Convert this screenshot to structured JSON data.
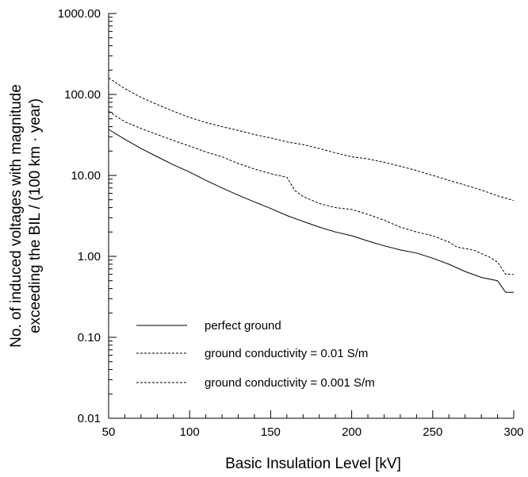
{
  "chart_data": {
    "type": "line",
    "title": "",
    "xlabel": "Basic Insulation Level [kV]",
    "ylabel_lines": [
      "No. of induced voltages with magnitude",
      "exceeding the BIL / (100 km · year)"
    ],
    "yscale": "log",
    "xlim": [
      50,
      300
    ],
    "ylim": [
      0.01,
      1000
    ],
    "x_ticks": [
      50,
      100,
      150,
      200,
      250,
      300
    ],
    "x_tick_labels": [
      "50",
      "100",
      "150",
      "200",
      "250",
      "300"
    ],
    "y_ticks": [
      0.01,
      0.1,
      1,
      10,
      100,
      1000
    ],
    "y_tick_labels": [
      "0.01",
      "0.10",
      "1.00",
      "10.00",
      "100.00",
      "1000.00"
    ],
    "grid": false,
    "legend_position": "bottom-left",
    "series": [
      {
        "name": "perfect ground",
        "style": "solid",
        "points": [
          [
            50,
            37
          ],
          [
            60,
            28
          ],
          [
            70,
            21.5
          ],
          [
            80,
            17
          ],
          [
            90,
            13.5
          ],
          [
            100,
            11
          ],
          [
            110,
            8.7
          ],
          [
            120,
            7
          ],
          [
            130,
            5.7
          ],
          [
            140,
            4.7
          ],
          [
            150,
            3.9
          ],
          [
            160,
            3.2
          ],
          [
            170,
            2.7
          ],
          [
            180,
            2.3
          ],
          [
            190,
            2.0
          ],
          [
            200,
            1.8
          ],
          [
            210,
            1.55
          ],
          [
            220,
            1.35
          ],
          [
            230,
            1.2
          ],
          [
            240,
            1.1
          ],
          [
            250,
            0.95
          ],
          [
            260,
            0.8
          ],
          [
            270,
            0.65
          ],
          [
            280,
            0.55
          ],
          [
            290,
            0.5
          ],
          [
            295,
            0.36
          ],
          [
            300,
            0.36
          ]
        ]
      },
      {
        "name": "ground conductivity = 0.01 S/m",
        "style": "dashed",
        "points": [
          [
            50,
            62
          ],
          [
            60,
            46
          ],
          [
            70,
            38
          ],
          [
            80,
            32
          ],
          [
            90,
            27
          ],
          [
            100,
            23
          ],
          [
            110,
            19.5
          ],
          [
            120,
            17
          ],
          [
            130,
            14
          ],
          [
            140,
            12
          ],
          [
            150,
            10.5
          ],
          [
            160,
            9.5
          ],
          [
            165,
            6.5
          ],
          [
            170,
            5.5
          ],
          [
            180,
            4.5
          ],
          [
            190,
            4.0
          ],
          [
            200,
            3.8
          ],
          [
            210,
            3.3
          ],
          [
            220,
            2.8
          ],
          [
            230,
            2.3
          ],
          [
            240,
            2.0
          ],
          [
            250,
            1.8
          ],
          [
            260,
            1.5
          ],
          [
            265,
            1.3
          ],
          [
            275,
            1.2
          ],
          [
            285,
            0.98
          ],
          [
            290,
            0.85
          ],
          [
            295,
            0.6
          ],
          [
            300,
            0.6
          ]
        ]
      },
      {
        "name": "ground conductivity = 0.001 S/m",
        "style": "dashed",
        "points": [
          [
            50,
            160
          ],
          [
            60,
            118
          ],
          [
            70,
            92
          ],
          [
            80,
            75
          ],
          [
            90,
            62
          ],
          [
            100,
            52
          ],
          [
            110,
            45
          ],
          [
            120,
            40
          ],
          [
            130,
            36
          ],
          [
            140,
            32
          ],
          [
            150,
            29
          ],
          [
            160,
            26
          ],
          [
            170,
            24
          ],
          [
            180,
            21.5
          ],
          [
            190,
            19
          ],
          [
            200,
            17
          ],
          [
            210,
            16
          ],
          [
            220,
            14.5
          ],
          [
            230,
            13
          ],
          [
            240,
            11.5
          ],
          [
            250,
            10
          ],
          [
            260,
            8.7
          ],
          [
            270,
            7.6
          ],
          [
            280,
            6.6
          ],
          [
            290,
            5.6
          ],
          [
            300,
            4.9
          ]
        ]
      }
    ]
  }
}
